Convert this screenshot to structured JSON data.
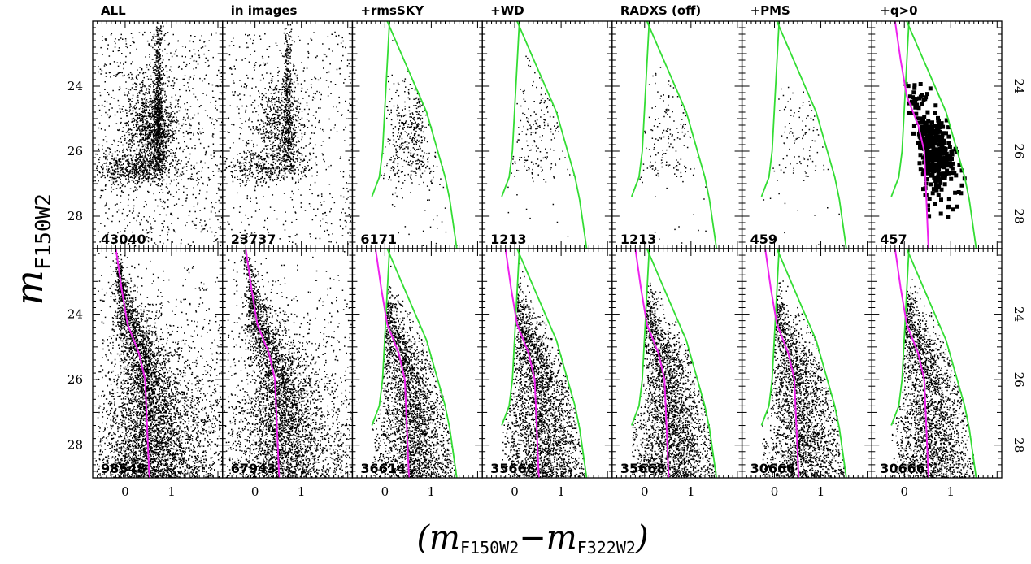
{
  "chart_data": {
    "type": "scatter",
    "layout": "2 rows x 7 columns, shared axes",
    "panel_titles": [
      "ALL",
      "in images",
      "+rmsSKY",
      "+WD",
      "RADXS (off)",
      "+PMS",
      "+q>0"
    ],
    "xlabel": {
      "prefix": "(",
      "m1": "m",
      "sub1": "F150W2",
      "minus": "−",
      "m2": "m",
      "sub2": "F322W2",
      "suffix": ")"
    },
    "ylabel": {
      "m": "m",
      "sub": "F150W2"
    },
    "xlim": [
      -0.7,
      2.1
    ],
    "ylim": [
      29.0,
      22.0
    ],
    "x_ticks": [
      0,
      1
    ],
    "x_tick_labels": [
      "0",
      "1"
    ],
    "y_ticks": [
      24,
      26,
      28
    ],
    "y_tick_labels": [
      "24",
      "26",
      "28"
    ],
    "rows": [
      {
        "name": "top",
        "counts": [
          "43040",
          "23737",
          "6171",
          "1213",
          "1213",
          "459",
          "457"
        ]
      },
      {
        "name": "bottom",
        "counts": [
          "98548",
          "67943",
          "36614",
          "35668",
          "35668",
          "30666",
          "30666"
        ]
      }
    ],
    "selection_lines": {
      "color": "#33dd33",
      "left_boundary": [
        [
          -0.28,
          27.4
        ],
        [
          -0.12,
          26.8
        ],
        [
          -0.05,
          26.0
        ],
        [
          0.1,
          22.0
        ]
      ],
      "right_boundary": [
        [
          0.05,
          22.0
        ],
        [
          0.9,
          24.8
        ],
        [
          1.3,
          26.8
        ],
        [
          1.4,
          27.5
        ],
        [
          1.55,
          29.0
        ]
      ],
      "first_shown_in_panel": "+rmsSKY"
    },
    "fiducial_line": {
      "color": "#ee22ee",
      "points": [
        [
          -0.2,
          22.0
        ],
        [
          -0.08,
          23.2
        ],
        [
          0.05,
          24.3
        ],
        [
          0.3,
          25.2
        ],
        [
          0.43,
          26.0
        ],
        [
          0.46,
          27.0
        ],
        [
          0.49,
          28.0
        ],
        [
          0.52,
          29.0
        ]
      ],
      "shown_in": "all bottom-row panels and the +q>0 top panel"
    },
    "binary_points_panel": "+q>0",
    "point_color": "#000000"
  }
}
